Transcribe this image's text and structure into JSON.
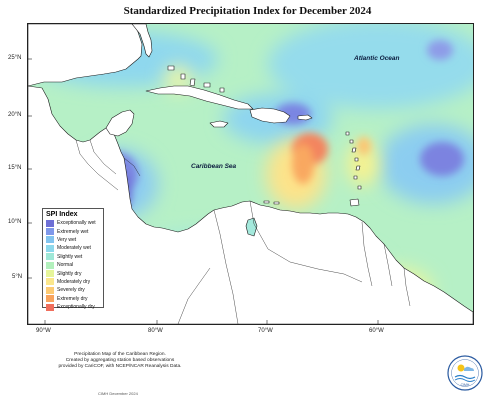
{
  "map": {
    "title": "Standardized Precipitation Index for December 2024",
    "ocean_labels": {
      "atlantic": "Atlantic Ocean",
      "caribbean": "Caribbean Sea"
    },
    "lat_ticks": [
      "25°N",
      "20°N",
      "15°N",
      "10°N",
      "5°N"
    ],
    "lon_ticks": [
      "90°W",
      "80°W",
      "70°W",
      "60°W"
    ]
  },
  "legend": {
    "title": "SPI Index",
    "items": [
      {
        "label": "Exceptionally wet",
        "color": "#6f70d6"
      },
      {
        "label": "Extremely wet",
        "color": "#7f98ea"
      },
      {
        "label": "Very wet",
        "color": "#82c4ef"
      },
      {
        "label": "Moderately wet",
        "color": "#8ed9ec"
      },
      {
        "label": "Slightly wet",
        "color": "#9fe8d7"
      },
      {
        "label": "Normal",
        "color": "#b2f0bc"
      },
      {
        "label": "Slightly dry",
        "color": "#e6f59a"
      },
      {
        "label": "Moderately dry",
        "color": "#fbe78c"
      },
      {
        "label": "Severely dry",
        "color": "#fdcb73"
      },
      {
        "label": "Extremely dry",
        "color": "#f9a45d"
      },
      {
        "label": "Exceptionally dry",
        "color": "#f06e5c"
      }
    ]
  },
  "footer": {
    "note_lines": [
      "Precipitation Map of the Caribbean Region.",
      "Created by aggregating station based observations",
      "provided by CariCOF, with NCEP/NCAR Reanalysis Data."
    ],
    "credit": "CIMH December 2024",
    "logo_text": "CIMH"
  },
  "colors": {
    "land": "#ffffff",
    "coastline": "#1a1a1a",
    "base_field": "#aef0c9"
  }
}
